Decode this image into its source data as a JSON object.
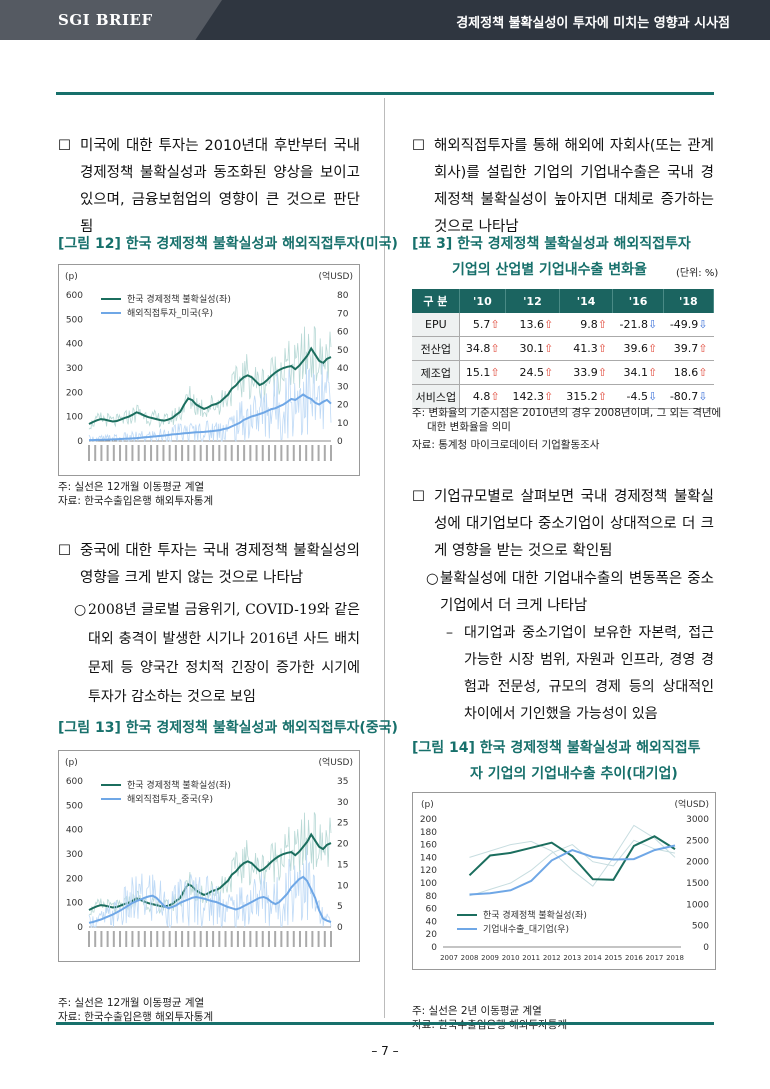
{
  "header": {
    "brand": "SGI BRIEF",
    "title": "경제정책 불확실성이 투자에 미치는 영향과 시사점"
  },
  "left": {
    "p1": "미국에 대한 투자는 2010년대 후반부터 국내 경제정책 불확실성과 동조화된 양상을 보이고 있으며, 금융보험업의 영향이 큰 것으로 판단됨",
    "fig12_caption": "[그림 12] 한국 경제정책 불확실성과 해외직접투자(미국)",
    "fig12_note1": "주: 실선은 12개월 이동평균 계열",
    "fig12_note2": "자료: 한국수출입은행 해외투자통계",
    "p2": "중국에 대한 투자는 국내 경제정책 불확실성의 영향을 크게 받지 않는 것으로 나타남",
    "p3": "2008년 글로벌 금융위기, COVID-19와 같은 대외 충격이 발생한 시기나 2016년 사드 배치문제 등 양국간 정치적 긴장이 증가한 시기에 투자가 감소하는 것으로 보임",
    "fig13_caption": "[그림 13] 한국 경제정책 불확실성과 해외직접투자(중국)",
    "fig13_note1": "주: 실선은 12개월 이동평균 계열",
    "fig13_note2": "자료: 한국수출입은행 해외투자통계"
  },
  "right": {
    "p1": "해외직접투자를 통해 해외에 자회사(또는 관계회사)를 설립한 기업의 기업내수출은 국내 경제정책 불확실성이 높아지면 대체로 증가하는 것으로 나타남",
    "tbl_caption1": "[표 3] 한국 경제정책 불확실성과 해외직접투자",
    "tbl_caption2": "기업의 산업별 기업내수출 변화율",
    "tbl_unit": "(단위: %)",
    "tbl_note1": "주: 변화율의 기준시점은 2010년의 경우 2008년이며, 그 외는 격년에",
    "tbl_note2": "대한 변화율을 의미",
    "tbl_note3": "자료: 통계청 마이크로데이터 기업활동조사",
    "p2": "기업규모별로 살펴보면 국내 경제정책 불확실성에 대기업보다 중소기업이 상대적으로 더 크게 영향을 받는 것으로 확인됨",
    "p3": "불확실성에 대한 기업내수출의 변동폭은 중소기업에서 더 크게 나타남",
    "p4": "대기업과 중소기업이 보유한 자본력, 접근 가능한 시장 범위, 자원과 인프라, 경영 경험과 전문성, 규모의 경제 등의 상대적인 차이에서 기인했을 가능성이 있음",
    "fig14_caption1": "[그림 14] 한국 경제정책 불확실성과 해외직접투",
    "fig14_caption2": "자 기업의 기업내수출 추이(대기업)",
    "fig14_note1": "주: 실선은 2년 이동평균 계열",
    "fig14_note2": "자료: 한국수출입은행 해외투자통계"
  },
  "table": {
    "headers": [
      "구 분",
      "'10",
      "'12",
      "'14",
      "'16",
      "'18"
    ],
    "rows": [
      {
        "label": "EPU",
        "cells": [
          {
            "v": "5.7",
            "d": "up"
          },
          {
            "v": "13.6",
            "d": "up"
          },
          {
            "v": "9.8",
            "d": "up"
          },
          {
            "v": "-21.8",
            "d": "dn"
          },
          {
            "v": "-49.9",
            "d": "dn"
          }
        ]
      },
      {
        "label": "전산업",
        "cells": [
          {
            "v": "34.8",
            "d": "up"
          },
          {
            "v": "30.1",
            "d": "up"
          },
          {
            "v": "41.3",
            "d": "up"
          },
          {
            "v": "39.6",
            "d": "up"
          },
          {
            "v": "39.7",
            "d": "up"
          }
        ]
      },
      {
        "label": "제조업",
        "cells": [
          {
            "v": "15.1",
            "d": "up"
          },
          {
            "v": "24.5",
            "d": "up"
          },
          {
            "v": "33.9",
            "d": "up"
          },
          {
            "v": "34.1",
            "d": "up"
          },
          {
            "v": "18.6",
            "d": "up"
          }
        ]
      },
      {
        "label": "서비스업",
        "cells": [
          {
            "v": "4.8",
            "d": "up"
          },
          {
            "v": "142.3",
            "d": "up"
          },
          {
            "v": "315.2",
            "d": "up"
          },
          {
            "v": "-4.5",
            "d": "dn"
          },
          {
            "v": "-80.7",
            "d": "dn"
          }
        ]
      }
    ]
  },
  "chart_data": [
    {
      "id": "fig12",
      "type": "line",
      "left_unit": "(p)",
      "right_unit": "(억USD)",
      "left_ticks": [
        "0",
        "100",
        "200",
        "300",
        "400",
        "500",
        "600"
      ],
      "right_ticks": [
        "0",
        "10",
        "20",
        "30",
        "40",
        "50",
        "60",
        "70",
        "80"
      ],
      "ylim_left": [
        0,
        600
      ],
      "ylim_right": [
        0,
        80
      ],
      "series": [
        {
          "name": "한국 경제정책 불확실성(좌)",
          "axis": "left",
          "color": "#1b6e5e",
          "values": [
            70,
            78,
            85,
            90,
            88,
            84,
            80,
            82,
            88,
            95,
            100,
            108,
            118,
            112,
            104,
            98,
            94,
            90,
            86,
            84,
            88,
            95,
            108,
            120,
            150,
            175,
            168,
            150,
            140,
            132,
            138,
            148,
            152,
            160,
            175,
            190,
            215,
            228,
            248,
            262,
            270,
            262,
            246,
            230,
            238,
            252,
            268,
            282,
            292,
            300,
            305,
            308,
            295,
            310,
            330,
            350,
            380,
            355,
            330,
            320,
            338,
            345
          ]
        },
        {
          "name": "해외직접투자_미국(우)",
          "axis": "right",
          "color": "#6fa7e6",
          "values": [
            0.5,
            0.5,
            0.6,
            0.7,
            0.7,
            0.8,
            0.9,
            1.0,
            1.1,
            1.2,
            1.3,
            1.4,
            1.6,
            1.8,
            2.0,
            2.2,
            2.4,
            2.6,
            2.8,
            3.0,
            3.3,
            3.6,
            3.8,
            4.0,
            4.2,
            4.4,
            4.6,
            4.8,
            4.9,
            5.0,
            5.2,
            5.4,
            5.7,
            6.0,
            6.6,
            7.0,
            8.0,
            9.0,
            10.0,
            11.5,
            12.5,
            13.5,
            14.0,
            14.8,
            15.5,
            16.5,
            17.5,
            18.0,
            19.0,
            20.0,
            21.5,
            23.0,
            22.5,
            24.0,
            25.5,
            24.0,
            23.0,
            21.0,
            20.0,
            21.5,
            22.5,
            20.5
          ]
        }
      ]
    },
    {
      "id": "fig13",
      "type": "line",
      "left_unit": "(p)",
      "right_unit": "(억USD)",
      "left_ticks": [
        "0",
        "100",
        "200",
        "300",
        "400",
        "500",
        "600"
      ],
      "right_ticks": [
        "0",
        "5",
        "10",
        "15",
        "20",
        "25",
        "30",
        "35"
      ],
      "ylim_left": [
        0,
        600
      ],
      "ylim_right": [
        0,
        35
      ],
      "series": [
        {
          "name": "한국 경제정책 불확실성(좌)",
          "axis": "left",
          "color": "#1b6e5e",
          "values": [
            70,
            78,
            85,
            90,
            88,
            84,
            80,
            82,
            88,
            95,
            100,
            108,
            118,
            112,
            104,
            98,
            94,
            90,
            86,
            84,
            88,
            95,
            108,
            120,
            150,
            175,
            168,
            150,
            140,
            132,
            138,
            148,
            152,
            160,
            175,
            190,
            215,
            228,
            248,
            262,
            270,
            262,
            246,
            230,
            238,
            252,
            268,
            282,
            292,
            300,
            305,
            308,
            295,
            310,
            330,
            350,
            380,
            355,
            330,
            320,
            338,
            345
          ]
        },
        {
          "name": "해외직접투자_중국(우)",
          "axis": "right",
          "color": "#6fa7e6",
          "values": [
            1.0,
            1.2,
            1.5,
            1.8,
            2.2,
            2.6,
            3.0,
            3.5,
            4.0,
            4.6,
            5.2,
            5.8,
            6.2,
            6.6,
            7.0,
            7.3,
            7.5,
            7.0,
            6.0,
            5.0,
            4.5,
            4.8,
            5.2,
            5.8,
            6.2,
            6.6,
            7.0,
            7.2,
            7.0,
            6.8,
            6.5,
            6.2,
            6.0,
            5.6,
            5.2,
            4.8,
            4.5,
            4.2,
            4.5,
            5.0,
            5.5,
            6.0,
            6.5,
            7.0,
            7.2,
            6.8,
            6.0,
            5.5,
            6.0,
            7.0,
            8.0,
            9.5,
            10.5,
            11.5,
            12.0,
            11.0,
            9.0,
            7.0,
            4.0,
            2.0,
            1.5,
            1.2
          ]
        }
      ]
    },
    {
      "id": "fig14",
      "type": "line",
      "left_unit": "(p)",
      "right_unit": "(억USD)",
      "categories": [
        "2007",
        "2008",
        "2009",
        "2010",
        "2011",
        "2012",
        "2013",
        "2014",
        "2015",
        "2016",
        "2017",
        "2018"
      ],
      "left_ticks": [
        "0",
        "20",
        "40",
        "60",
        "80",
        "100",
        "120",
        "140",
        "160",
        "180",
        "200"
      ],
      "right_ticks": [
        "0",
        "500",
        "1000",
        "1500",
        "2000",
        "2500",
        "3000"
      ],
      "ylim_left": [
        0,
        200
      ],
      "ylim_right": [
        0,
        3000
      ],
      "series": [
        {
          "name": "한국 경제정책 불확실성(좌)",
          "axis": "left",
          "color": "#1b6e5e",
          "values": [
            null,
            112,
            143,
            147,
            155,
            163,
            142,
            106,
            105,
            158,
            173,
            153
          ]
        },
        {
          "name": "기업내수출_대기업(우)",
          "axis": "right",
          "color": "#6fa7e6",
          "values": [
            null,
            1230,
            1260,
            1330,
            1550,
            2030,
            2270,
            2110,
            2050,
            2060,
            2270,
            2380
          ]
        }
      ],
      "raw_series": [
        {
          "axis": "left",
          "color": "#c7dde0",
          "values": [
            null,
            140,
            150,
            160,
            165,
            150,
            120,
            95,
            140,
            190,
            170,
            140
          ]
        },
        {
          "axis": "right",
          "color": "#c7dde0",
          "values": [
            null,
            1200,
            1350,
            1500,
            1800,
            2200,
            2400,
            2000,
            1900,
            2500,
            2300,
            2200
          ]
        }
      ]
    }
  ],
  "page": {
    "number": "– 7 –"
  }
}
